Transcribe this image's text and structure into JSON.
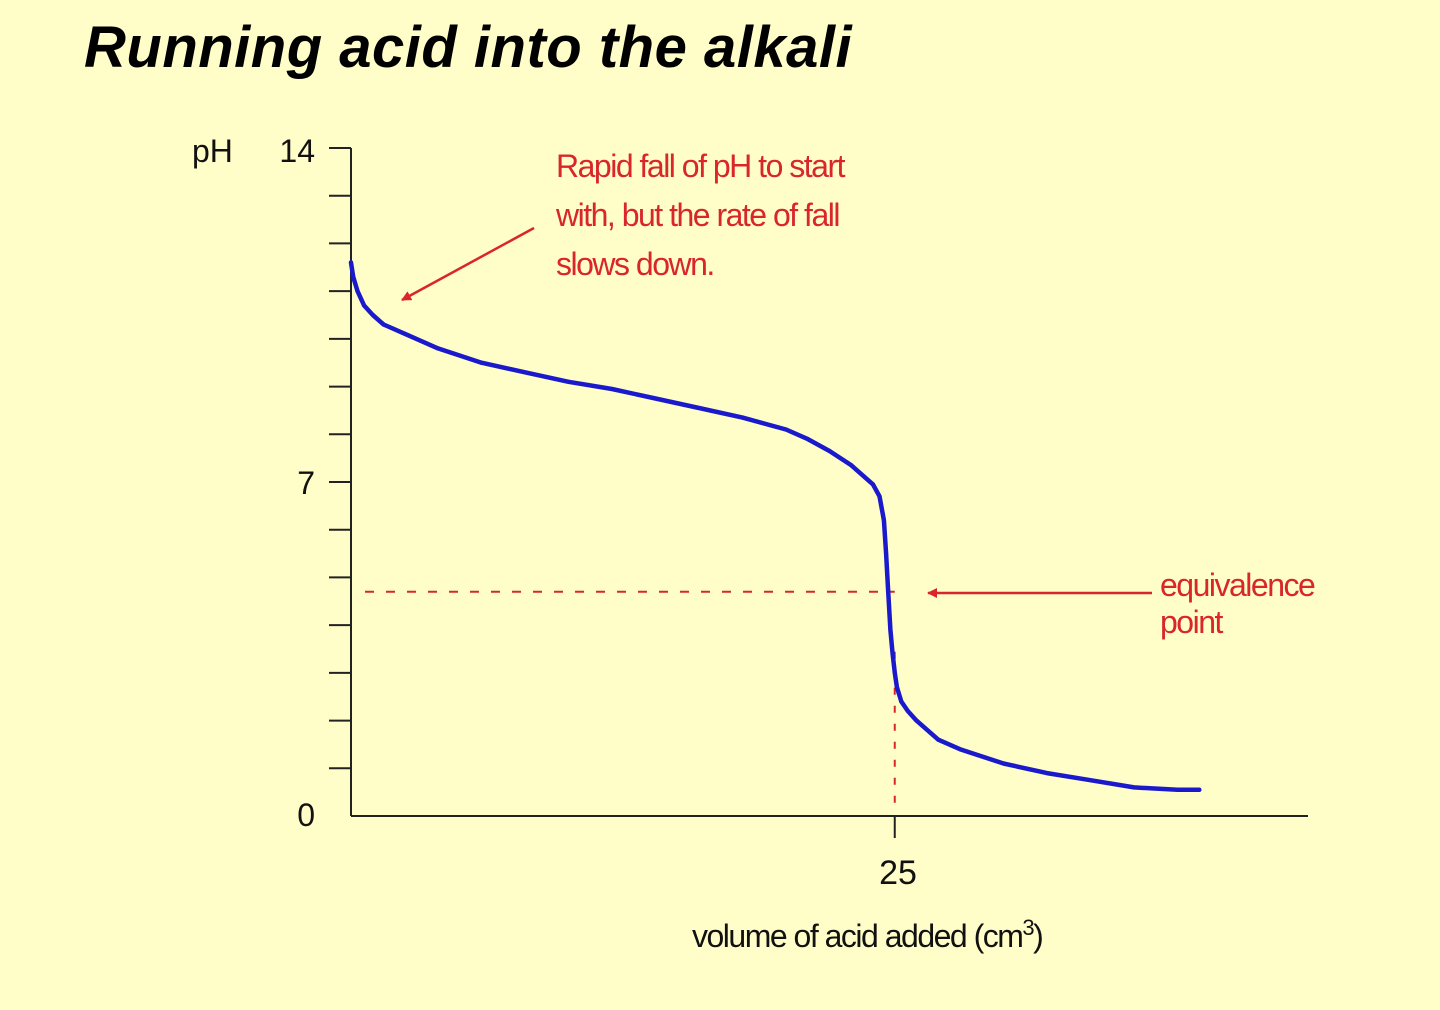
{
  "title": "Running acid into the alkali",
  "chart_data": {
    "type": "line",
    "title": "Running acid into the alkali",
    "xlabel": "volume of acid added (cm3)",
    "xlabel_main": "volume of acid added (cm",
    "xlabel_sup": "3",
    "xlabel_close": ")",
    "ylabel": "pH",
    "xlim": [
      0,
      44
    ],
    "ylim": [
      0,
      14
    ],
    "y_ticks_labeled": [
      "0",
      "7",
      "14"
    ],
    "x_ticks_labeled": [
      "25"
    ],
    "grid": false,
    "series": [
      {
        "color": "#1a1acc",
        "x": [
          0,
          0.1,
          0.3,
          0.6,
          1.0,
          1.5,
          2.5,
          4,
          6,
          8,
          10,
          12,
          14,
          16,
          18,
          20,
          21,
          22,
          23,
          24,
          24.3,
          24.5,
          24.6,
          24.7,
          24.8,
          24.9,
          25.0,
          25.1,
          25.3,
          25.6,
          26,
          27,
          28,
          30,
          32,
          34,
          36,
          38,
          39
        ],
        "y": [
          11.6,
          11.3,
          11.0,
          10.7,
          10.5,
          10.3,
          10.1,
          9.8,
          9.5,
          9.3,
          9.1,
          8.95,
          8.75,
          8.55,
          8.35,
          8.1,
          7.9,
          7.65,
          7.35,
          6.95,
          6.7,
          6.2,
          5.5,
          4.7,
          3.9,
          3.4,
          3.0,
          2.7,
          2.4,
          2.2,
          2.0,
          1.6,
          1.4,
          1.1,
          0.9,
          0.75,
          0.6,
          0.55,
          0.55
        ]
      }
    ],
    "reference_lines": {
      "equivalence_ph": 4.7,
      "equivalence_volume": 25,
      "color": "#d8262a"
    },
    "annotations": [
      {
        "lines": [
          "Rapid fall of pH to start",
          "with, but the rate of fall",
          "slows down."
        ],
        "color": "#d8262a"
      },
      {
        "lines": [
          "equivalence",
          "point"
        ],
        "color": "#d8262a"
      }
    ]
  }
}
